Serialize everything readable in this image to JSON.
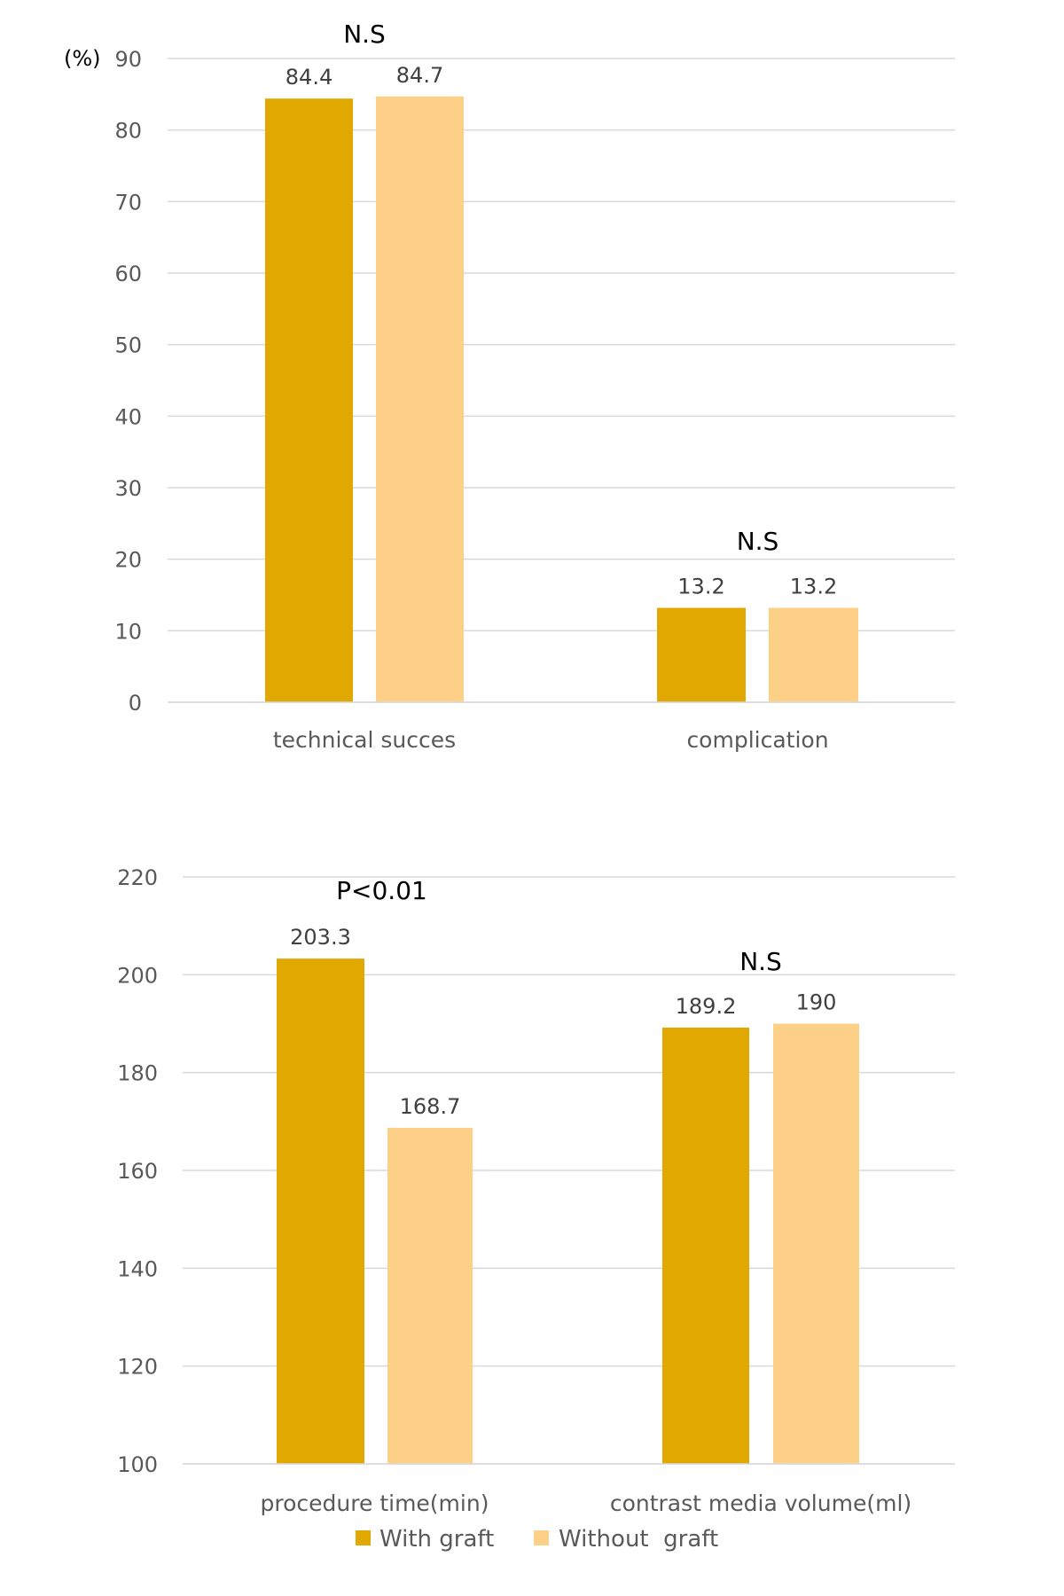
{
  "colors": {
    "with_graft": "#E0A800",
    "without_graft": "#FDD088",
    "grid": "#D9D9D9"
  },
  "legend": {
    "items": [
      {
        "label": "With graft",
        "color": "#E0A800"
      },
      {
        "label": "Without  graft",
        "color": "#FDD088"
      }
    ],
    "placement": "bottom"
  },
  "chart_data": [
    {
      "type": "bar",
      "ylabel": "(%)",
      "ylim": [
        0,
        90
      ],
      "yticks": [
        "0",
        "10",
        "20",
        "30",
        "40",
        "50",
        "60",
        "70",
        "80",
        "90"
      ],
      "grid": true,
      "categories": [
        "technical succes",
        "complication"
      ],
      "series": [
        {
          "name": "With graft",
          "values": [
            84.4,
            13.2
          ],
          "labels": [
            "84.4",
            "13.2"
          ]
        },
        {
          "name": "Without  graft",
          "values": [
            84.7,
            13.2
          ],
          "labels": [
            "84.7",
            "13.2"
          ]
        }
      ],
      "annotations": [
        "N.S",
        "N.S"
      ]
    },
    {
      "type": "bar",
      "ylabel": "",
      "ylim": [
        100,
        220
      ],
      "yticks": [
        "100",
        "120",
        "140",
        "160",
        "180",
        "200",
        "220"
      ],
      "grid": true,
      "categories": [
        "procedure time(min)",
        "contrast media volume(ml)"
      ],
      "series": [
        {
          "name": "With graft",
          "values": [
            203.3,
            189.2
          ],
          "labels": [
            "203.3",
            "189.2"
          ]
        },
        {
          "name": "Without  graft",
          "values": [
            168.7,
            190
          ],
          "labels": [
            "168.7",
            "190"
          ]
        }
      ],
      "annotations": [
        "P<0.01",
        "N.S"
      ]
    }
  ]
}
